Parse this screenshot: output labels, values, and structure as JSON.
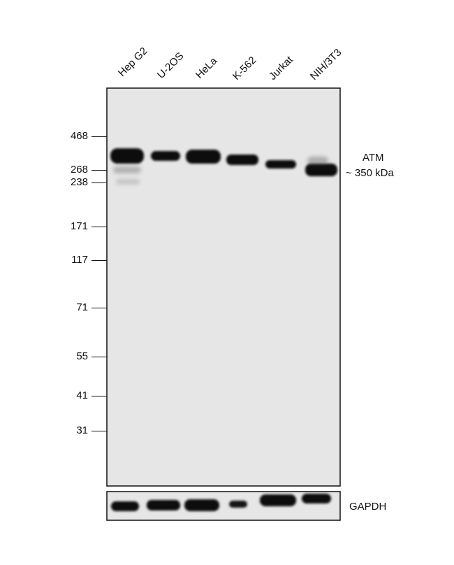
{
  "lanes": [
    "Hep G2",
    "U-2OS",
    "HeLa",
    "K-562",
    "Jurkat",
    "NIH/3T3"
  ],
  "markers": [
    "468",
    "268",
    "238",
    "171",
    "117",
    "71",
    "55",
    "41",
    "31"
  ],
  "target": {
    "name": "ATM",
    "size": "~ 350 kDa"
  },
  "loading_control": "GAPDH",
  "colors": {
    "membrane": "#e6e6e6",
    "band": "#080808",
    "frame": "#111111"
  }
}
